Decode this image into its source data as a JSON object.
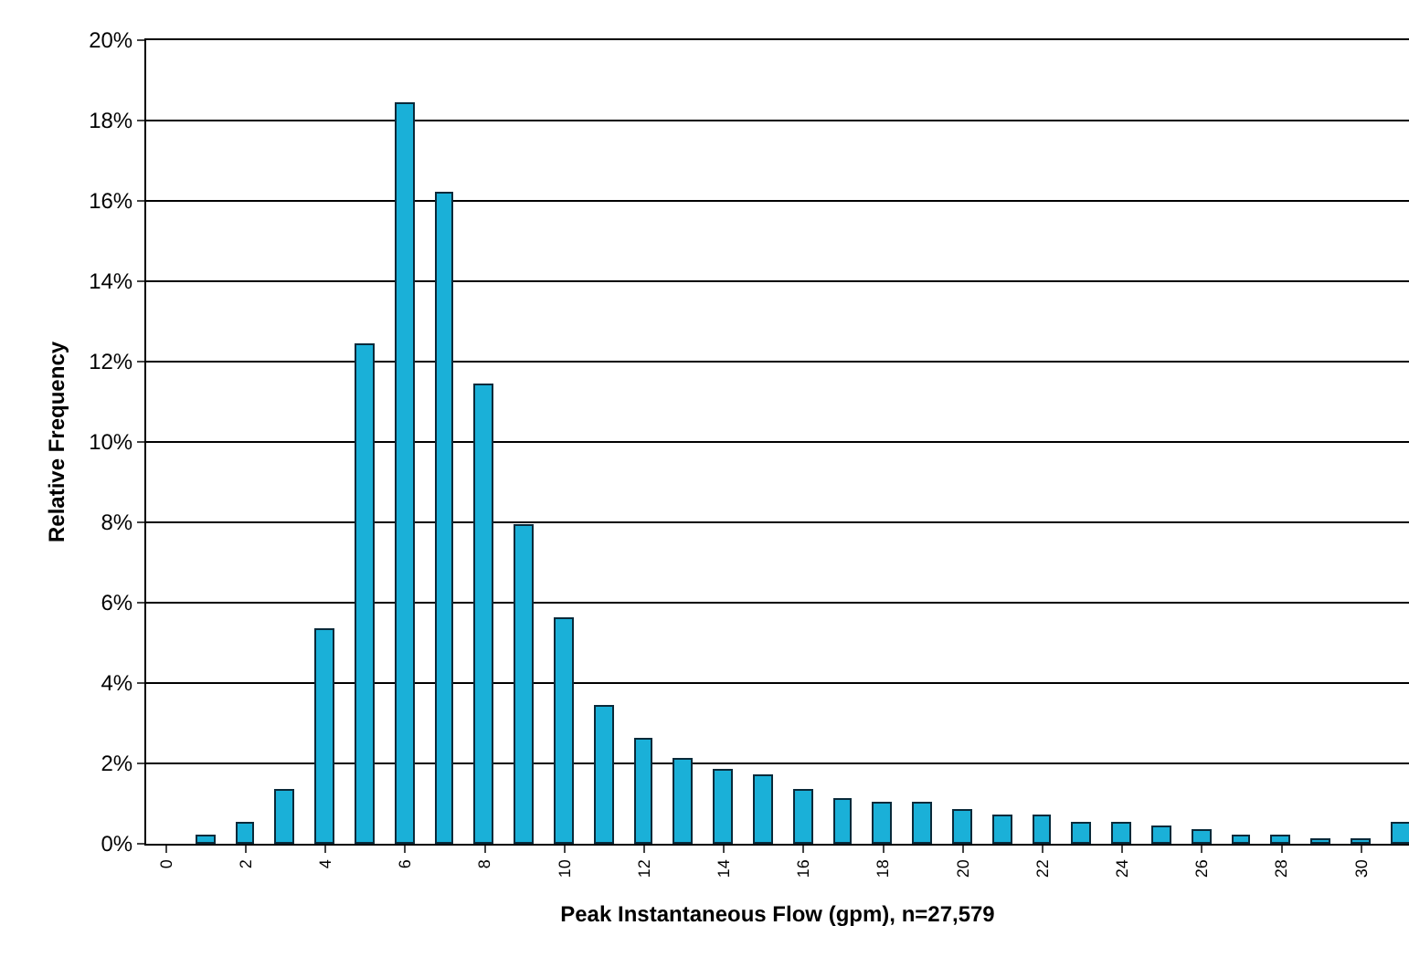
{
  "chart_data": {
    "type": "bar",
    "xlabel": "Peak Instantaneous Flow (gpm), n=27,579",
    "ylabel": "Relative Frequency",
    "x": [
      1,
      2,
      3,
      4,
      5,
      6,
      7,
      8,
      9,
      10,
      11,
      12,
      13,
      14,
      15,
      16,
      17,
      18,
      19,
      20,
      21,
      22,
      23,
      24,
      25,
      26,
      27,
      28,
      29,
      30,
      31
    ],
    "values": [
      0.2,
      0.5,
      1.3,
      5.3,
      12.4,
      18.4,
      16.2,
      11.4,
      7.9,
      5.6,
      3.4,
      2.6,
      2.1,
      1.8,
      1.7,
      1.3,
      1.1,
      1.0,
      1.0,
      0.8,
      0.7,
      0.7,
      0.5,
      0.5,
      0.4,
      0.3,
      0.2,
      0.2,
      0.1,
      0.1,
      0.5
    ],
    "color": "#1ab0d8",
    "xlim": [
      -0.5,
      31.2
    ],
    "xticks": [
      0,
      2,
      4,
      6,
      8,
      10,
      12,
      14,
      16,
      18,
      20,
      22,
      24,
      26,
      28,
      30
    ],
    "ylim": [
      0,
      20
    ],
    "yticks": [
      {
        "value": 0,
        "label": "0%"
      },
      {
        "value": 2,
        "label": "2%"
      },
      {
        "value": 4,
        "label": "4%"
      },
      {
        "value": 6,
        "label": "6%"
      },
      {
        "value": 8,
        "label": "8%"
      },
      {
        "value": 10,
        "label": "10%"
      },
      {
        "value": 12,
        "label": "12%"
      },
      {
        "value": 14,
        "label": "14%"
      },
      {
        "value": 16,
        "label": "16%"
      },
      {
        "value": 18,
        "label": "18%"
      },
      {
        "value": 20,
        "label": "20%"
      }
    ],
    "grid": "y",
    "legend": false
  }
}
